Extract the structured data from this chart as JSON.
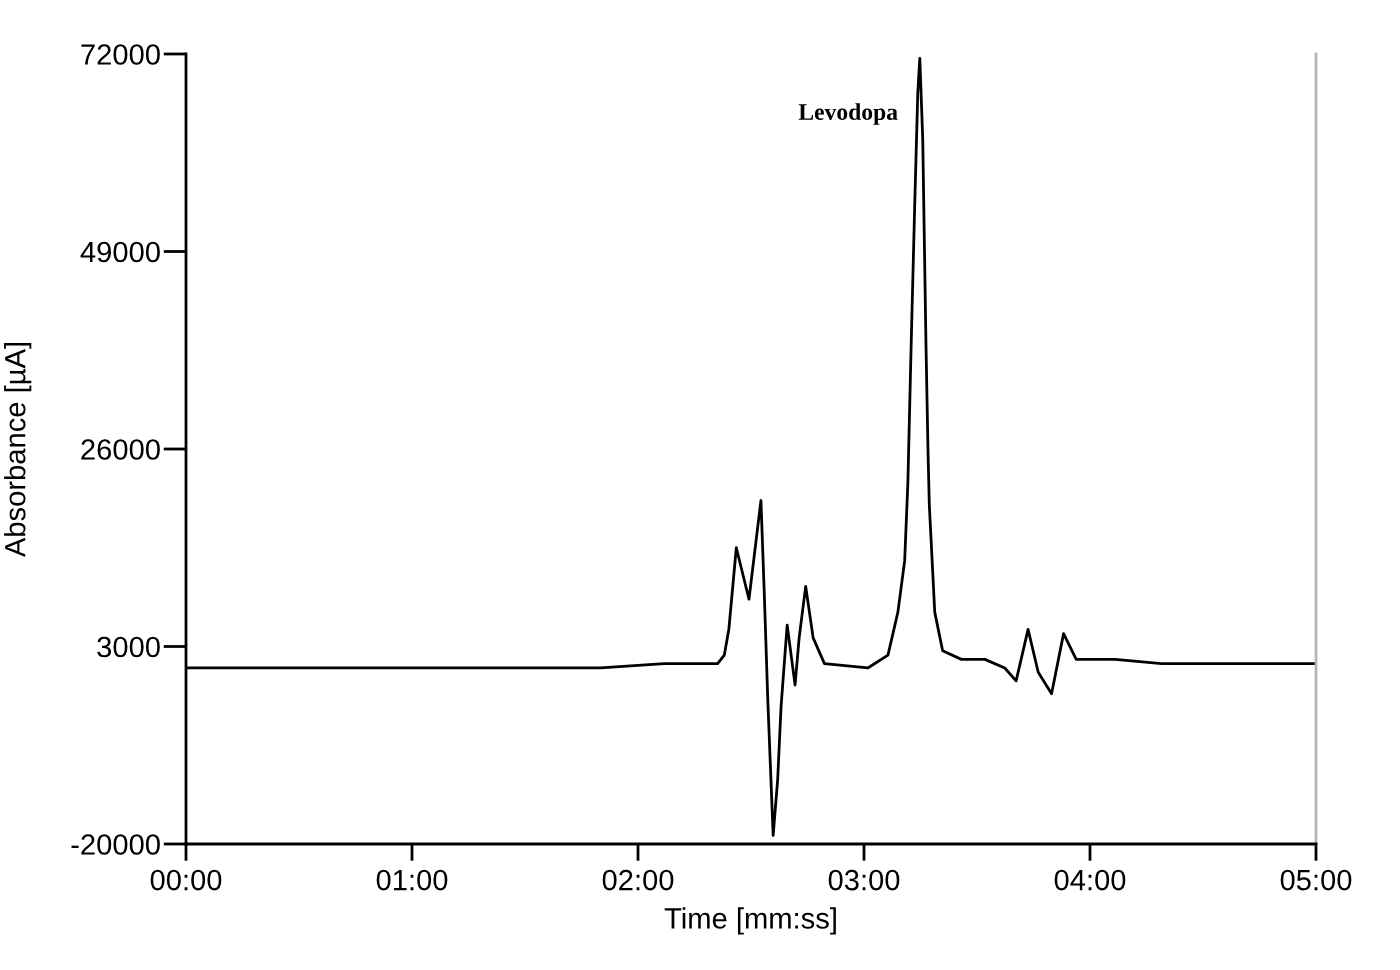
{
  "chart_data": {
    "type": "line",
    "xlabel": "Time [mm:ss]",
    "ylabel": "Absorbance [µA]",
    "x": [
      0.0,
      0.5,
      1.0,
      1.5,
      1.835,
      2.116,
      2.352,
      2.382,
      2.402,
      2.435,
      2.491,
      2.544,
      2.559,
      2.574,
      2.598,
      2.618,
      2.633,
      2.66,
      2.68,
      2.695,
      2.713,
      2.742,
      2.775,
      2.825,
      3.017,
      3.106,
      3.15,
      3.18,
      3.194,
      3.209,
      3.224,
      3.238,
      3.247,
      3.26,
      3.274,
      3.283,
      3.289,
      3.313,
      3.348,
      3.431,
      3.535,
      3.623,
      3.673,
      3.726,
      3.771,
      3.83,
      3.883,
      3.939,
      4.022,
      4.111,
      4.317,
      5.0
    ],
    "series": [
      {
        "color": "#000000",
        "values": [
          500,
          500,
          500,
          500,
          500,
          1000,
          1000,
          2000,
          5000,
          14500,
          8500,
          20000,
          9000,
          -3000,
          -19000,
          -12500,
          -4000,
          5500,
          1500,
          -1500,
          4000,
          10000,
          4000,
          1000,
          500,
          2000,
          7000,
          13000,
          22000,
          38500,
          54000,
          67500,
          71500,
          62000,
          38500,
          26000,
          19500,
          7000,
          2500,
          1500,
          1500,
          500,
          -1000,
          5000,
          0,
          -2500,
          4500,
          1500,
          1500,
          1500,
          1000,
          1000
        ]
      }
    ],
    "xlim": [
      0,
      5
    ],
    "ylim": [
      -20000,
      72000
    ],
    "xticks": [
      {
        "value": 0,
        "label": "00:00"
      },
      {
        "value": 1,
        "label": "01:00"
      },
      {
        "value": 2,
        "label": "02:00"
      },
      {
        "value": 3,
        "label": "03:00"
      },
      {
        "value": 4,
        "label": "04:00"
      },
      {
        "value": 5,
        "label": "05:00"
      }
    ],
    "yticks": [
      -20000,
      3000,
      26000,
      49000,
      72000
    ],
    "grid": false,
    "line_style": "solid",
    "annotations": [
      "Levodopa"
    ]
  }
}
